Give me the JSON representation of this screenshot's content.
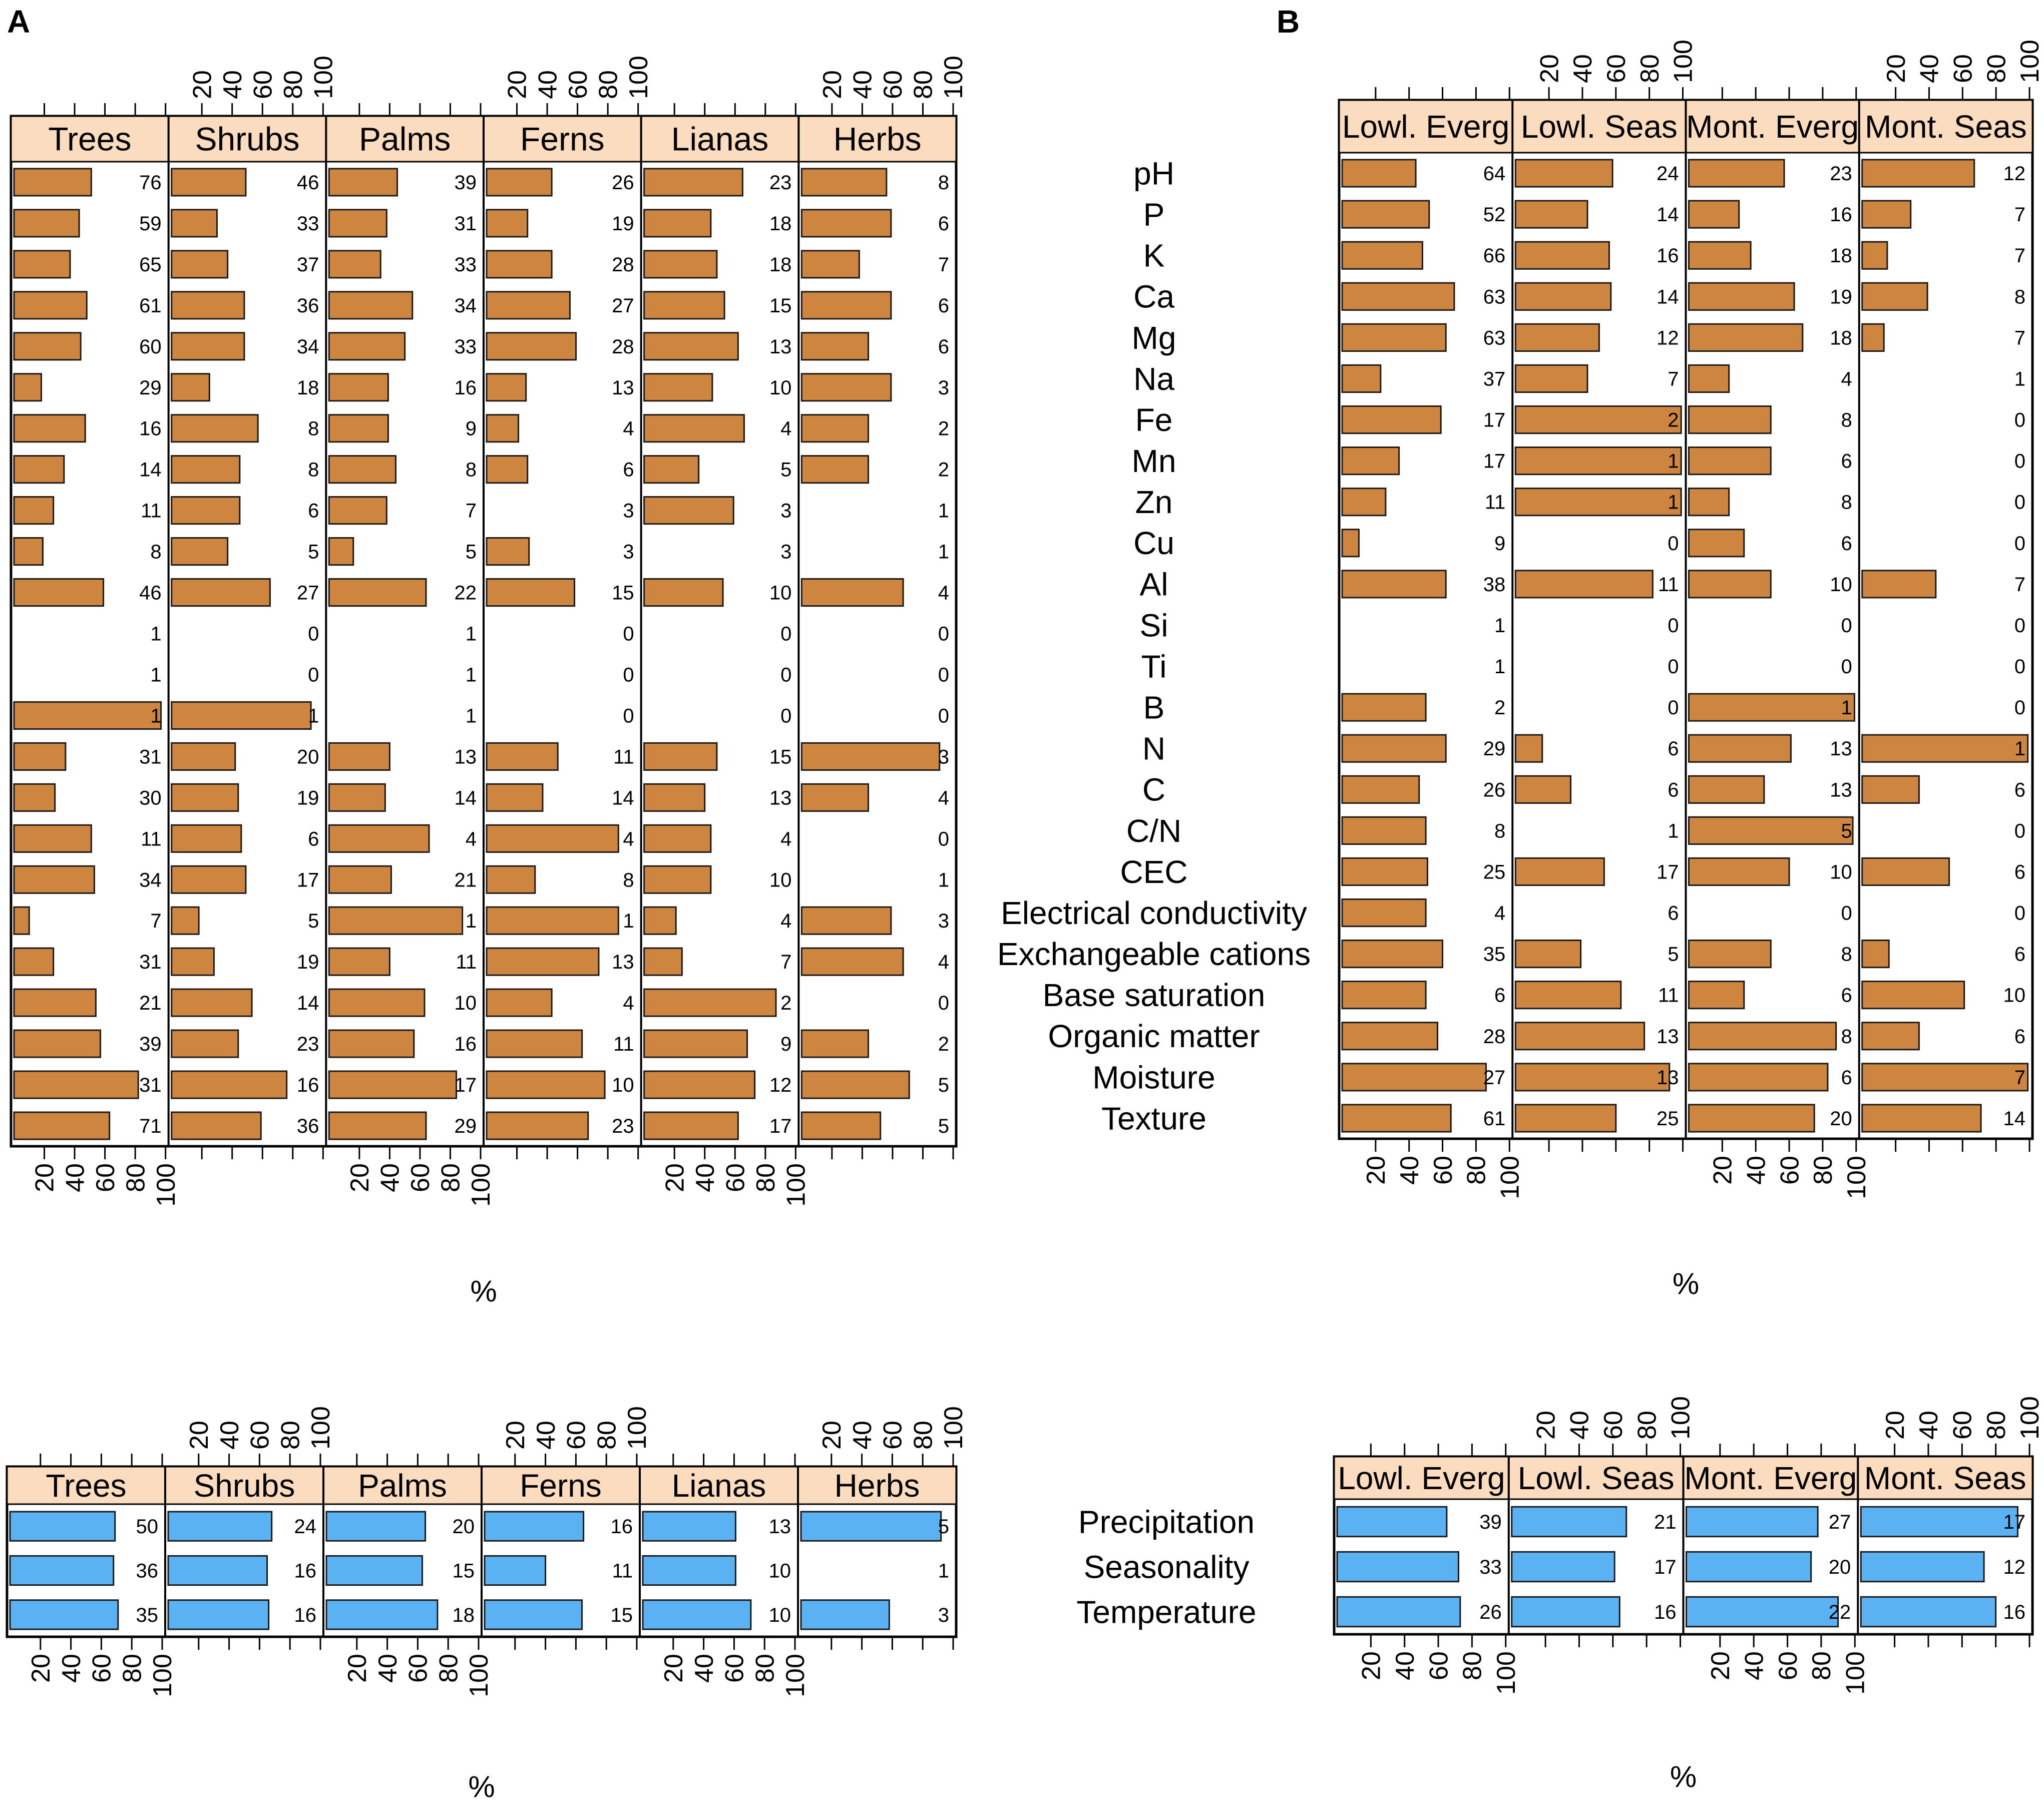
{
  "panel_labels": {
    "a": "A",
    "b": "B"
  },
  "colors": {
    "soil_bar": "#CD8540",
    "climate_bar": "#5BB2F2",
    "header_fill": "#FBDCBE",
    "frame": "#000000"
  },
  "axis_tick_labels": [
    "20",
    "40",
    "60",
    "80",
    "100"
  ],
  "axis_unit": "%",
  "chart_data": [
    {
      "id": "A-top",
      "type": "bar",
      "orientation": "horizontal",
      "xlim": [
        0,
        100
      ],
      "xlabel": "%",
      "panels": [
        "Trees",
        "Shrubs",
        "Palms",
        "Ferns",
        "Lianas",
        "Herbs"
      ],
      "rows": 24,
      "series": [
        {
          "name": "Trees",
          "values": [
            51,
            43,
            37,
            48,
            44,
            18,
            47,
            33,
            26,
            19,
            59,
            0,
            0,
            97,
            34,
            27,
            51,
            53,
            10,
            26,
            54,
            57,
            82,
            63
          ],
          "labels": [
            "76",
            "59",
            "65",
            "61",
            "60",
            "29",
            "16",
            "14",
            "11",
            "8",
            "46",
            "1",
            "1",
            "1",
            "31",
            "30",
            "11",
            "34",
            "7",
            "31",
            "21",
            "39",
            "31",
            "71"
          ]
        },
        {
          "name": "Shrubs",
          "values": [
            49,
            30,
            37,
            48,
            48,
            25,
            57,
            45,
            45,
            37,
            65,
            0,
            0,
            92,
            42,
            44,
            46,
            49,
            18,
            28,
            53,
            44,
            76,
            59
          ],
          "labels": [
            "46",
            "33",
            "37",
            "36",
            "34",
            "18",
            "8",
            "8",
            "6",
            "5",
            "27",
            "0",
            "0",
            "1",
            "20",
            "19",
            "6",
            "17",
            "5",
            "19",
            "14",
            "23",
            "16",
            "36"
          ]
        },
        {
          "name": "Palms",
          "values": [
            45,
            38,
            34,
            55,
            50,
            39,
            39,
            44,
            38,
            16,
            64,
            0,
            0,
            0,
            40,
            37,
            66,
            41,
            88,
            40,
            63,
            56,
            84,
            64
          ],
          "labels": [
            "39",
            "31",
            "33",
            "34",
            "33",
            "16",
            "9",
            "8",
            "7",
            "5",
            "22",
            "1",
            "1",
            "1",
            "13",
            "14",
            "4",
            "21",
            "1",
            "11",
            "10",
            "16",
            "17",
            "29"
          ]
        },
        {
          "name": "Ferns",
          "values": [
            43,
            27,
            43,
            55,
            59,
            26,
            21,
            27,
            0,
            28,
            58,
            0,
            0,
            0,
            47,
            37,
            87,
            32,
            87,
            74,
            43,
            63,
            78,
            67
          ],
          "labels": [
            "26",
            "19",
            "28",
            "27",
            "28",
            "13",
            "4",
            "6",
            "3",
            "3",
            "15",
            "0",
            "0",
            "0",
            "11",
            "14",
            "4",
            "8",
            "1",
            "13",
            "4",
            "11",
            "10",
            "23"
          ]
        },
        {
          "name": "Lianas",
          "values": [
            65,
            44,
            48,
            53,
            62,
            45,
            66,
            36,
            59,
            0,
            52,
            0,
            0,
            0,
            48,
            40,
            44,
            44,
            21,
            25,
            87,
            68,
            73,
            62
          ],
          "labels": [
            "23",
            "18",
            "18",
            "15",
            "13",
            "10",
            "4",
            "5",
            "3",
            "3",
            "10",
            "0",
            "0",
            "0",
            "15",
            "13",
            "4",
            "10",
            "4",
            "7",
            "2",
            "9",
            "12",
            "17"
          ]
        },
        {
          "name": "Herbs",
          "values": [
            56,
            59,
            38,
            59,
            44,
            59,
            44,
            44,
            0,
            0,
            67,
            0,
            0,
            0,
            91,
            44,
            0,
            0,
            59,
            67,
            0,
            44,
            71,
            52
          ],
          "labels": [
            "8",
            "6",
            "7",
            "6",
            "6",
            "3",
            "2",
            "2",
            "1",
            "1",
            "4",
            "0",
            "0",
            "0",
            "3",
            "4",
            "0",
            "1",
            "3",
            "4",
            "0",
            "2",
            "5",
            "5"
          ]
        }
      ]
    },
    {
      "id": "A-bottom",
      "type": "bar",
      "orientation": "horizontal",
      "xlim": [
        0,
        100
      ],
      "xlabel": "%",
      "panels": [
        "Trees",
        "Shrubs",
        "Palms",
        "Ferns",
        "Lianas",
        "Herbs"
      ],
      "rows": 3,
      "series": [
        {
          "name": "Trees",
          "values": [
            69,
            68,
            71
          ],
          "labels": [
            "50",
            "36",
            "35"
          ]
        },
        {
          "name": "Shrubs",
          "values": [
            68,
            65,
            66
          ],
          "labels": [
            "24",
            "16",
            "16"
          ]
        },
        {
          "name": "Palms",
          "values": [
            65,
            63,
            73
          ],
          "labels": [
            "20",
            "15",
            "18"
          ]
        },
        {
          "name": "Ferns",
          "values": [
            65,
            40,
            64
          ],
          "labels": [
            "16",
            "11",
            "15"
          ]
        },
        {
          "name": "Lianas",
          "values": [
            61,
            61,
            71
          ],
          "labels": [
            "13",
            "10",
            "10"
          ]
        },
        {
          "name": "Herbs",
          "values": [
            92,
            0,
            58
          ],
          "labels": [
            "5",
            "1",
            "3"
          ]
        }
      ]
    },
    {
      "id": "B-top",
      "type": "bar",
      "orientation": "horizontal",
      "xlim": [
        0,
        100
      ],
      "xlabel": "%",
      "panels": [
        "Lowl. Everg",
        "Lowl. Seas",
        "Mont. Everg",
        "Mont. Seas"
      ],
      "categories": [
        "pH",
        "P",
        "K",
        "Ca",
        "Mg",
        "Na",
        "Fe",
        "Mn",
        "Zn",
        "Cu",
        "Al",
        "Si",
        "Ti",
        "B",
        "N",
        "C",
        "C/N",
        "CEC",
        "Electrical conductivity",
        "Exchangeable cations",
        "Base saturation",
        "Organic matter",
        "Moisture",
        "Texture"
      ],
      "series": [
        {
          "name": "Lowl. Everg",
          "values": [
            44,
            52,
            48,
            67,
            62,
            23,
            59,
            34,
            26,
            10,
            62,
            0,
            0,
            50,
            62,
            46,
            50,
            51,
            50,
            60,
            50,
            57,
            86,
            65
          ],
          "labels": [
            "64",
            "52",
            "66",
            "63",
            "63",
            "37",
            "17",
            "17",
            "11",
            "9",
            "38",
            "1",
            "1",
            "2",
            "29",
            "26",
            "8",
            "25",
            "4",
            "35",
            "6",
            "28",
            "27",
            "61"
          ]
        },
        {
          "name": "Lowl. Seas",
          "values": [
            58,
            43,
            56,
            57,
            50,
            43,
            99,
            99,
            99,
            0,
            82,
            0,
            0,
            0,
            16,
            33,
            0,
            53,
            0,
            39,
            63,
            77,
            92,
            60
          ],
          "labels": [
            "24",
            "14",
            "16",
            "14",
            "12",
            "7",
            "2",
            "1",
            "1",
            "0",
            "11",
            "0",
            "0",
            "0",
            "6",
            "6",
            "1",
            "17",
            "6",
            "5",
            "11",
            "13",
            "13",
            "25"
          ]
        },
        {
          "name": "Mont. Everg",
          "values": [
            57,
            30,
            37,
            63,
            68,
            24,
            49,
            49,
            24,
            33,
            49,
            0,
            0,
            99,
            61,
            45,
            98,
            60,
            0,
            49,
            33,
            88,
            83,
            75
          ],
          "labels": [
            "23",
            "16",
            "18",
            "19",
            "18",
            "4",
            "8",
            "6",
            "8",
            "6",
            "10",
            "0",
            "0",
            "1",
            "13",
            "13",
            "5",
            "10",
            "0",
            "8",
            "6",
            "8",
            "6",
            "20"
          ]
        },
        {
          "name": "Mont. Seas",
          "values": [
            67,
            29,
            15,
            39,
            13,
            0,
            0,
            0,
            0,
            0,
            44,
            0,
            0,
            0,
            99,
            34,
            0,
            52,
            0,
            16,
            61,
            34,
            99,
            71
          ],
          "labels": [
            "12",
            "7",
            "7",
            "8",
            "7",
            "1",
            "0",
            "0",
            "0",
            "0",
            "7",
            "0",
            "0",
            "0",
            "1",
            "6",
            "0",
            "6",
            "0",
            "6",
            "10",
            "6",
            "7",
            "14"
          ]
        }
      ]
    },
    {
      "id": "B-bottom",
      "type": "bar",
      "orientation": "horizontal",
      "xlim": [
        0,
        100
      ],
      "xlabel": "%",
      "panels": [
        "Lowl. Everg",
        "Lowl. Seas",
        "Mont. Everg",
        "Mont. Seas"
      ],
      "categories": [
        "Precipitation",
        "Seasonality",
        "Temperature"
      ],
      "series": [
        {
          "name": "Lowl. Everg",
          "values": [
            65,
            72,
            73
          ],
          "labels": [
            "39",
            "33",
            "26"
          ]
        },
        {
          "name": "Lowl. Seas",
          "values": [
            68,
            61,
            64
          ],
          "labels": [
            "21",
            "17",
            "16"
          ]
        },
        {
          "name": "Mont. Everg",
          "values": [
            78,
            74,
            90
          ],
          "labels": [
            "27",
            "20",
            "22"
          ]
        },
        {
          "name": "Mont. Seas",
          "values": [
            93,
            73,
            80
          ],
          "labels": [
            "17",
            "12",
            "16"
          ]
        }
      ]
    }
  ]
}
